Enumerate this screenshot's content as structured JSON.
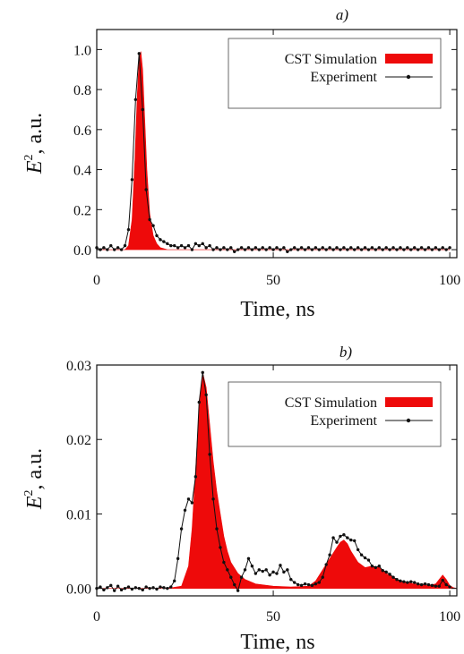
{
  "colors": {
    "simulation": "#ee0a0a",
    "experiment": "#111111",
    "axis": "#111111"
  },
  "chart_data": [
    {
      "type": "area",
      "panel_label": "a)",
      "xlabel": "Time, ns",
      "ylabel_base": "E",
      "ylabel_sup": "2",
      "ylabel_rest": ", a.u.",
      "xlim": [
        0,
        102
      ],
      "ylim": [
        -0.04,
        1.1
      ],
      "xticks": [
        0,
        50,
        100
      ],
      "xtick_labels": [
        "0",
        "50",
        "100"
      ],
      "yticks": [
        0,
        0.2,
        0.4,
        0.6,
        0.8,
        1.0
      ],
      "ytick_labels": [
        "0.0",
        "0.2",
        "0.4",
        "0.6",
        "0.8",
        "1.0"
      ],
      "legend_position": "top-right",
      "grid": false,
      "series": [
        {
          "name": "CST Simulation",
          "kind": "filled-area",
          "x": [
            0,
            8,
            9,
            10,
            10.8,
            11.5,
            12,
            12.5,
            13,
            13.6,
            14.2,
            15,
            16,
            17,
            18,
            20,
            25,
            30,
            40,
            50,
            60,
            70,
            80,
            90,
            100
          ],
          "y": [
            0,
            0,
            0.02,
            0.15,
            0.45,
            0.78,
            0.95,
            0.99,
            0.9,
            0.65,
            0.4,
            0.18,
            0.07,
            0.03,
            0.01,
            0,
            0,
            0,
            0,
            0,
            0,
            0,
            0,
            0,
            0
          ]
        },
        {
          "name": "Experiment",
          "kind": "line-markers",
          "x": [
            0,
            1,
            2,
            3,
            4,
            5,
            6,
            7,
            8,
            9,
            10,
            11,
            12,
            13,
            14,
            15,
            16,
            17,
            18,
            19,
            20,
            21,
            22,
            23,
            24,
            25,
            26,
            27,
            28,
            29,
            30,
            31,
            32,
            33,
            34,
            35,
            36,
            37,
            38,
            39,
            40,
            41,
            42,
            43,
            44,
            45,
            46,
            47,
            48,
            49,
            50,
            51,
            52,
            53,
            54,
            55,
            56,
            57,
            58,
            59,
            60,
            61,
            62,
            63,
            64,
            65,
            66,
            67,
            68,
            69,
            70,
            71,
            72,
            73,
            74,
            75,
            76,
            77,
            78,
            79,
            80,
            81,
            82,
            83,
            84,
            85,
            86,
            87,
            88,
            89,
            90,
            91,
            92,
            93,
            94,
            95,
            96,
            97,
            98,
            99,
            100
          ],
          "y": [
            0.01,
            0.0,
            0.01,
            0.0,
            0.02,
            0.0,
            0.01,
            0.0,
            0.02,
            0.1,
            0.35,
            0.75,
            0.98,
            0.7,
            0.3,
            0.15,
            0.12,
            0.07,
            0.05,
            0.04,
            0.03,
            0.02,
            0.02,
            0.01,
            0.02,
            0.01,
            0.02,
            0.0,
            0.03,
            0.02,
            0.03,
            0.01,
            0.02,
            0.0,
            0.01,
            0.0,
            0.01,
            0.0,
            0.01,
            -0.01,
            0.0,
            0.01,
            0.0,
            0.01,
            0.0,
            0.01,
            0.0,
            0.01,
            0.0,
            0.01,
            0.0,
            0.01,
            0.0,
            0.01,
            -0.01,
            0.0,
            0.01,
            0.0,
            0.01,
            0.0,
            0.01,
            0.0,
            0.01,
            0.0,
            0.01,
            0.0,
            0.01,
            0.0,
            0.01,
            0.0,
            0.01,
            0.0,
            0.01,
            0.0,
            0.01,
            0.0,
            0.01,
            0.0,
            0.01,
            0.0,
            0.01,
            0.0,
            0.01,
            0.0,
            0.01,
            0.0,
            0.01,
            0.0,
            0.01,
            0.0,
            0.01,
            0.0,
            0.01,
            0.0,
            0.01,
            0.0,
            0.01,
            0.0,
            0.01,
            0.0,
            0.01
          ]
        }
      ]
    },
    {
      "type": "area",
      "panel_label": "b)",
      "xlabel": "Time, ns",
      "ylabel_base": "E",
      "ylabel_sup": "2",
      "ylabel_rest": ", a.u.",
      "xlim": [
        0,
        102
      ],
      "ylim": [
        -0.001,
        0.03
      ],
      "xticks": [
        0,
        50,
        100
      ],
      "xtick_labels": [
        "0",
        "50",
        "100"
      ],
      "yticks": [
        0,
        0.01,
        0.02,
        0.03
      ],
      "ytick_labels": [
        "0.00",
        "0.01",
        "0.02",
        "0.03"
      ],
      "legend_position": "top-right",
      "grid": false,
      "series": [
        {
          "name": "CST Simulation",
          "kind": "filled-area",
          "x": [
            0,
            20,
            24,
            26,
            27,
            28,
            29,
            30,
            31,
            32,
            33,
            34,
            35,
            36,
            37,
            38,
            40,
            42,
            45,
            50,
            55,
            60,
            62,
            64,
            66,
            68,
            69,
            70,
            71,
            72,
            74,
            76,
            78,
            80,
            82,
            84,
            86,
            88,
            90,
            92,
            94,
            96,
            97,
            98,
            99,
            100,
            101,
            102
          ],
          "y": [
            0,
            0,
            0.0003,
            0.003,
            0.008,
            0.016,
            0.024,
            0.029,
            0.027,
            0.022,
            0.017,
            0.013,
            0.01,
            0.007,
            0.005,
            0.0035,
            0.002,
            0.0012,
            0.0006,
            0.0003,
            0.0002,
            0.0003,
            0.001,
            0.0025,
            0.004,
            0.0055,
            0.0062,
            0.0065,
            0.006,
            0.005,
            0.0035,
            0.0028,
            0.003,
            0.0028,
            0.002,
            0.0015,
            0.001,
            0.0008,
            0.0006,
            0.0005,
            0.0004,
            0.0006,
            0.0012,
            0.0018,
            0.0012,
            0.0004,
            0.0001,
            0
          ]
        },
        {
          "name": "Experiment",
          "kind": "line-markers",
          "x": [
            0,
            1,
            2,
            3,
            4,
            5,
            6,
            7,
            8,
            9,
            10,
            11,
            12,
            13,
            14,
            15,
            16,
            17,
            18,
            19,
            20,
            21,
            22,
            23,
            24,
            25,
            26,
            27,
            28,
            29,
            30,
            31,
            32,
            33,
            34,
            35,
            36,
            37,
            38,
            39,
            40,
            41,
            42,
            43,
            44,
            45,
            46,
            47,
            48,
            49,
            50,
            51,
            52,
            53,
            54,
            55,
            56,
            57,
            58,
            59,
            60,
            61,
            62,
            63,
            64,
            65,
            66,
            67,
            68,
            69,
            70,
            71,
            72,
            73,
            74,
            75,
            76,
            77,
            78,
            79,
            80,
            81,
            82,
            83,
            84,
            85,
            86,
            87,
            88,
            89,
            90,
            91,
            92,
            93,
            94,
            95,
            96,
            97,
            98,
            99,
            100
          ],
          "y": [
            0.0,
            0.0002,
            -0.0002,
            0.0001,
            0.0004,
            -0.0003,
            0.0003,
            -0.0002,
            0.0,
            0.0002,
            -0.0001,
            0.0001,
            0.0,
            -0.0002,
            0.0002,
            0.0,
            0.0001,
            -0.0001,
            0.0002,
            0.0001,
            0.0,
            0.0002,
            0.001,
            0.004,
            0.008,
            0.0105,
            0.012,
            0.0115,
            0.015,
            0.025,
            0.029,
            0.026,
            0.018,
            0.012,
            0.008,
            0.0055,
            0.0035,
            0.0025,
            0.0015,
            0.0005,
            -0.0003,
            0.0015,
            0.0025,
            0.004,
            0.003,
            0.002,
            0.0025,
            0.0023,
            0.0025,
            0.0018,
            0.0022,
            0.002,
            0.0031,
            0.0022,
            0.0025,
            0.0012,
            0.0008,
            0.0005,
            0.0004,
            0.0006,
            0.0005,
            0.0004,
            0.0006,
            0.0008,
            0.0015,
            0.0032,
            0.0045,
            0.0068,
            0.0062,
            0.007,
            0.0072,
            0.0068,
            0.0065,
            0.0064,
            0.0052,
            0.0045,
            0.0041,
            0.0038,
            0.003,
            0.0028,
            0.003,
            0.0024,
            0.0022,
            0.0019,
            0.0015,
            0.0012,
            0.001,
            0.0009,
            0.0008,
            0.0009,
            0.0008,
            0.0006,
            0.0005,
            0.0006,
            0.0005,
            0.0004,
            0.0003,
            0.0003,
            0.0011,
            0.0005,
            0.0002
          ]
        }
      ]
    }
  ]
}
